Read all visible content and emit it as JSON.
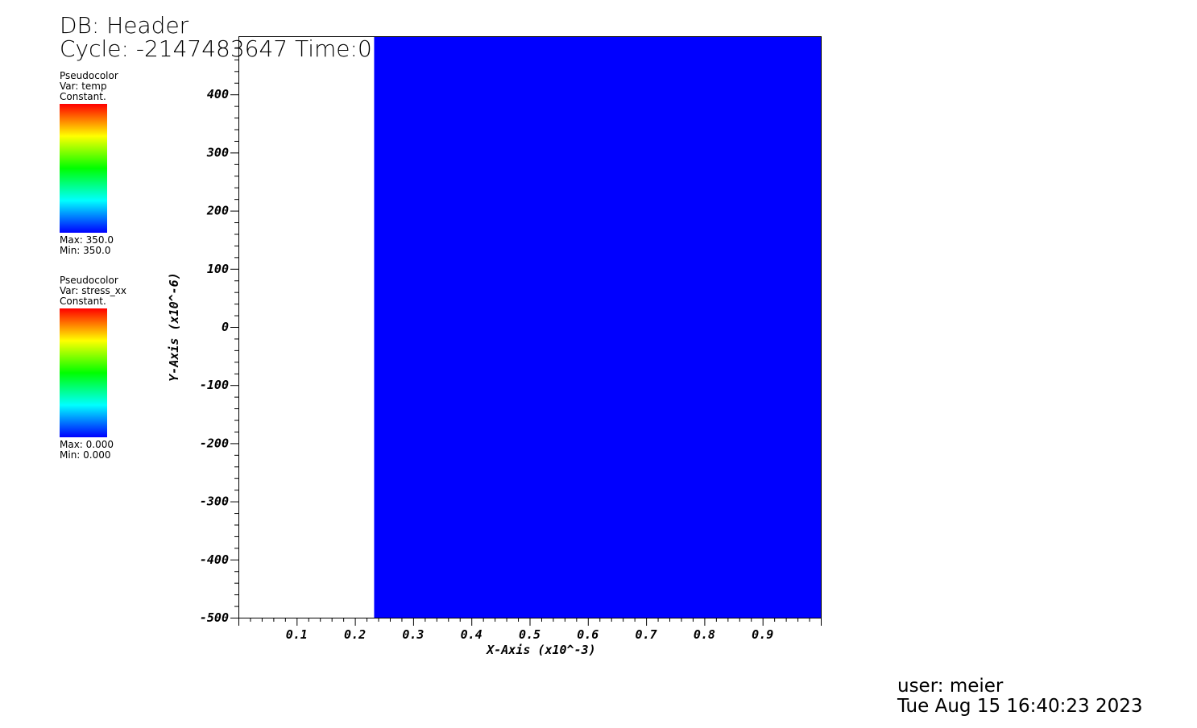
{
  "header": {
    "db_title": "DB: Header",
    "cycle_time": "Cycle: -2147483647 Time:0"
  },
  "legends": [
    {
      "plot_type": "Pseudocolor",
      "var_label": "Var: temp",
      "constant_label": "Constant.",
      "max_label": "Max:  350.0",
      "min_label": "Min:  350.0"
    },
    {
      "plot_type": "Pseudocolor",
      "var_label": "Var: stress_xx",
      "constant_label": "Constant.",
      "max_label": "Max:  0.000",
      "min_label": "Min:  0.000"
    }
  ],
  "colors": {
    "fill_region": "#0000ff",
    "colormap": [
      "#ff0000",
      "#ffff00",
      "#00ff00",
      "#00ffff",
      "#0000ff"
    ]
  },
  "chart_data": {
    "type": "heatmap",
    "xlabel": "X-Axis (x10^-3)",
    "ylabel": "Y-Axis (x10^-6)",
    "xlim": [
      0.0,
      1.0
    ],
    "ylim": [
      -500,
      500
    ],
    "x_ticks": [
      "0.1",
      "0.2",
      "0.3",
      "0.4",
      "0.5",
      "0.6",
      "0.7",
      "0.8",
      "0.9"
    ],
    "x_tick_values": [
      0.1,
      0.2,
      0.3,
      0.4,
      0.5,
      0.6,
      0.7,
      0.8,
      0.9
    ],
    "y_ticks": [
      "400",
      "300",
      "200",
      "100",
      "0",
      "-100",
      "-200",
      "-300",
      "-400",
      "-500"
    ],
    "y_tick_values": [
      400,
      300,
      200,
      100,
      0,
      -100,
      -200,
      -300,
      -400,
      -500
    ],
    "filled_region": {
      "x_start": 0.233,
      "x_end": 1.0,
      "y_start": -500,
      "y_end": 500,
      "value": 350.0
    }
  },
  "footer": {
    "user": "user: meier",
    "date": "Tue Aug 15 16:40:23 2023"
  }
}
